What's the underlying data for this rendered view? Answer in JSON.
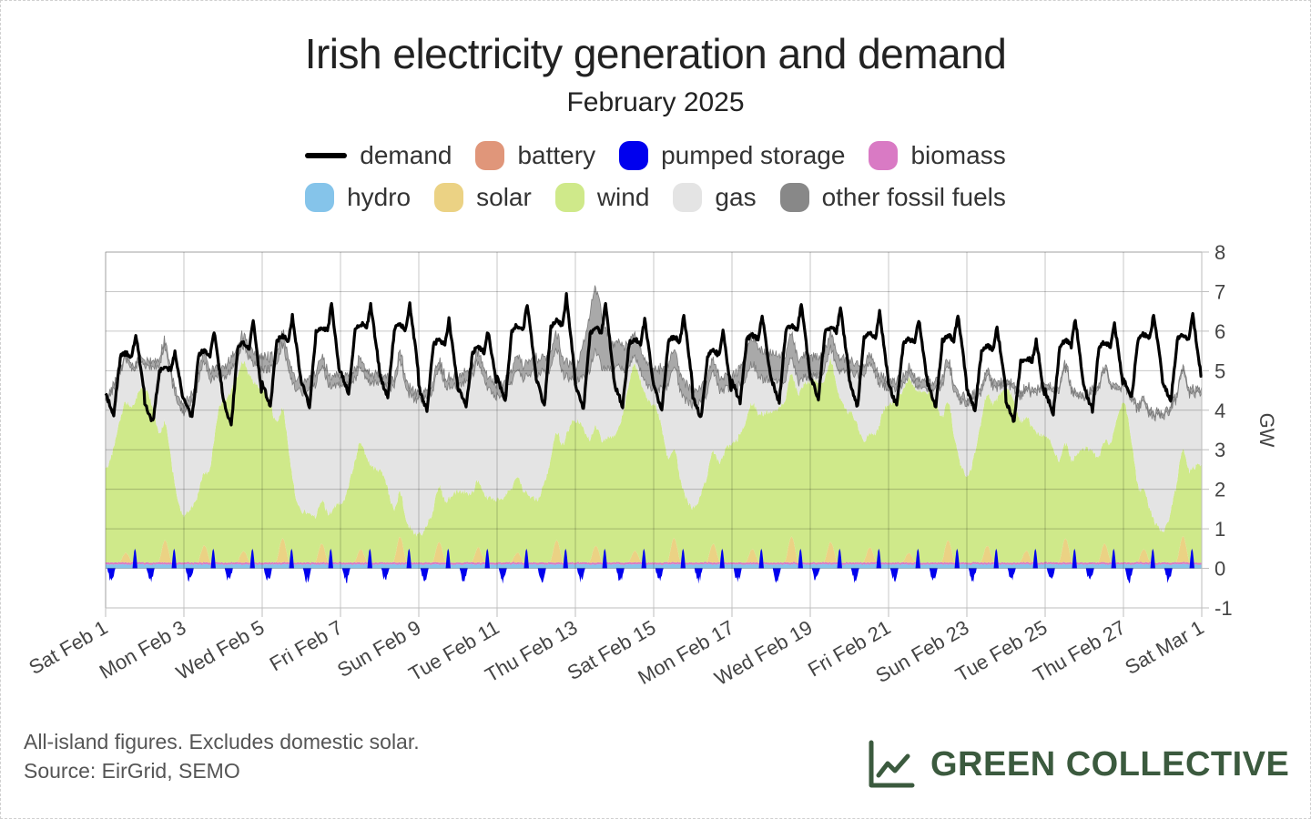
{
  "header": {
    "title": "Irish electricity generation and demand",
    "subtitle": "February 2025"
  },
  "legend": [
    {
      "label": "demand",
      "color": "#000000",
      "kind": "line"
    },
    {
      "label": "battery",
      "color": "#e0967a",
      "kind": "area"
    },
    {
      "label": "pumped storage",
      "color": "#0000ee",
      "kind": "area"
    },
    {
      "label": "biomass",
      "color": "#d97ac4",
      "kind": "area"
    },
    {
      "label": "hydro",
      "color": "#85c4ea",
      "kind": "area"
    },
    {
      "label": "solar",
      "color": "#ebd284",
      "kind": "area"
    },
    {
      "label": "wind",
      "color": "#cfe98a",
      "kind": "area"
    },
    {
      "label": "gas",
      "color": "#e4e4e4",
      "kind": "area"
    },
    {
      "label": "other fossil fuels",
      "color": "#888888",
      "kind": "area"
    }
  ],
  "chart_data": {
    "type": "area",
    "title": "Irish electricity generation and demand",
    "subtitle": "February 2025",
    "ylabel": "GW",
    "ylim": [
      -1,
      8
    ],
    "y_ticks": [
      "-1",
      "0",
      "1",
      "2",
      "3",
      "4",
      "5",
      "6",
      "7",
      "8"
    ],
    "x_ticks": [
      "Sat Feb 1",
      "Mon Feb 3",
      "Wed Feb 5",
      "Fri Feb 7",
      "Sun Feb 9",
      "Tue Feb 11",
      "Thu Feb 13",
      "Sat Feb 15",
      "Mon Feb 17",
      "Wed Feb 19",
      "Fri Feb 21",
      "Sun Feb 23",
      "Tue Feb 25",
      "Thu Feb 27",
      "Sat Mar 1"
    ],
    "x_range": [
      "2025-02-01",
      "2025-03-01"
    ],
    "grid": true,
    "legend_position": "top",
    "series": [
      {
        "name": "wind",
        "color": "#cfe98a",
        "x": [
          "2025-02-01",
          "2025-02-01 12:00",
          "2025-02-02",
          "2025-02-02 12:00",
          "2025-02-03",
          "2025-02-03 12:00",
          "2025-02-04",
          "2025-02-04 12:00",
          "2025-02-05",
          "2025-02-05 12:00",
          "2025-02-06",
          "2025-02-06 12:00",
          "2025-02-07",
          "2025-02-07 12:00",
          "2025-02-08",
          "2025-02-08 12:00",
          "2025-02-09",
          "2025-02-09 12:00",
          "2025-02-10",
          "2025-02-10 12:00",
          "2025-02-11",
          "2025-02-11 12:00",
          "2025-02-12",
          "2025-02-12 12:00",
          "2025-02-13",
          "2025-02-13 12:00",
          "2025-02-14",
          "2025-02-14 12:00",
          "2025-02-15",
          "2025-02-15 12:00",
          "2025-02-16",
          "2025-02-16 12:00",
          "2025-02-17",
          "2025-02-17 12:00",
          "2025-02-18",
          "2025-02-18 12:00",
          "2025-02-19",
          "2025-02-19 12:00",
          "2025-02-20",
          "2025-02-20 12:00",
          "2025-02-21",
          "2025-02-21 12:00",
          "2025-02-22",
          "2025-02-22 12:00",
          "2025-02-23",
          "2025-02-23 12:00",
          "2025-02-24",
          "2025-02-24 12:00",
          "2025-02-25",
          "2025-02-25 12:00",
          "2025-02-26",
          "2025-02-26 12:00",
          "2025-02-27",
          "2025-02-27 12:00",
          "2025-02-28",
          "2025-02-28 12:00",
          "2025-03-01"
        ],
        "values": [
          2.4,
          3.8,
          4.4,
          3.0,
          1.2,
          1.8,
          4.1,
          4.8,
          4.4,
          3.3,
          1.3,
          1.1,
          1.5,
          2.7,
          2.3,
          1.1,
          0.7,
          1.4,
          1.8,
          1.7,
          1.6,
          1.9,
          1.6,
          2.7,
          3.6,
          3.0,
          3.2,
          4.7,
          4.0,
          2.3,
          1.4,
          2.3,
          3.0,
          3.7,
          3.8,
          4.1,
          4.6,
          4.6,
          3.8,
          2.9,
          4.0,
          4.4,
          4.3,
          3.5,
          2.2,
          3.8,
          4.4,
          3.4,
          3.2,
          2.4,
          2.9,
          2.6,
          4.0,
          1.5,
          0.8,
          2.2,
          2.5
        ]
      },
      {
        "name": "gas",
        "color": "#e4e4e4",
        "x": [
          "2025-02-01",
          "2025-02-01 12:00",
          "2025-02-02",
          "2025-02-02 12:00",
          "2025-02-03",
          "2025-02-03 12:00",
          "2025-02-04",
          "2025-02-04 12:00",
          "2025-02-05",
          "2025-02-05 12:00",
          "2025-02-06",
          "2025-02-06 12:00",
          "2025-02-07",
          "2025-02-07 12:00",
          "2025-02-08",
          "2025-02-08 12:00",
          "2025-02-09",
          "2025-02-09 12:00",
          "2025-02-10",
          "2025-02-10 12:00",
          "2025-02-11",
          "2025-02-11 12:00",
          "2025-02-12",
          "2025-02-12 12:00",
          "2025-02-13",
          "2025-02-13 12:00",
          "2025-02-14",
          "2025-02-14 12:00",
          "2025-02-15",
          "2025-02-15 12:00",
          "2025-02-16",
          "2025-02-16 12:00",
          "2025-02-17",
          "2025-02-17 12:00",
          "2025-02-18",
          "2025-02-18 12:00",
          "2025-02-19",
          "2025-02-19 12:00",
          "2025-02-20",
          "2025-02-20 12:00",
          "2025-02-21",
          "2025-02-21 12:00",
          "2025-02-22",
          "2025-02-22 12:00",
          "2025-02-23",
          "2025-02-23 12:00",
          "2025-02-24",
          "2025-02-24 12:00",
          "2025-02-25",
          "2025-02-25 12:00",
          "2025-02-26",
          "2025-02-26 12:00",
          "2025-02-27",
          "2025-02-27 12:00",
          "2025-02-28",
          "2025-02-28 12:00",
          "2025-03-01"
        ],
        "values": [
          1.7,
          1.1,
          0.6,
          1.9,
          2.6,
          2.8,
          0.6,
          0.4,
          0.5,
          1.6,
          3.0,
          3.4,
          3.0,
          1.9,
          2.2,
          3.3,
          3.4,
          3.0,
          2.7,
          3.0,
          2.6,
          2.7,
          3.2,
          2.1,
          1.0,
          1.9,
          1.7,
          0.2,
          0.4,
          2.1,
          2.6,
          2.0,
          1.4,
          1.0,
          0.8,
          0.4,
          0.1,
          0.3,
          1.0,
          1.8,
          0.4,
          0.1,
          0.1,
          0.9,
          1.8,
          0.5,
          0.1,
          0.7,
          1.2,
          1.9,
          1.3,
          1.8,
          0.4,
          2.2,
          2.9,
          2.0,
          1.8
        ]
      },
      {
        "name": "other fossil fuels",
        "color": "#888888",
        "x": [
          "2025-02-01",
          "2025-02-05",
          "2025-02-09",
          "2025-02-13",
          "2025-02-13 12:00",
          "2025-02-14",
          "2025-02-17",
          "2025-02-17 12:00",
          "2025-02-21",
          "2025-02-25",
          "2025-03-01"
        ],
        "values": [
          0.1,
          0.3,
          0.2,
          0.4,
          1.6,
          0.6,
          0.3,
          0.7,
          0.2,
          0.1,
          0.1
        ]
      },
      {
        "name": "solar",
        "color": "#ebd284",
        "peak_gw": 0.7
      },
      {
        "name": "hydro",
        "color": "#85c4ea",
        "level_gw": 0.1
      },
      {
        "name": "biomass",
        "color": "#d97ac4",
        "level_gw": 0.05
      },
      {
        "name": "battery",
        "color": "#e0967a",
        "range_gw": [
          -0.1,
          0.3
        ]
      },
      {
        "name": "pumped storage",
        "color": "#0000ee",
        "range_gw": [
          -0.4,
          0.5
        ]
      },
      {
        "name": "demand",
        "color": "#000000",
        "daily_min_gw": [
          3.9,
          3.7,
          3.8,
          3.6,
          4.1,
          4.1,
          4.4,
          4.3,
          4.0,
          4.1,
          4.2,
          4.1,
          4.0,
          4.1,
          4.0,
          3.8,
          4.2,
          4.2,
          4.3,
          4.1,
          4.1,
          4.1,
          4.0,
          3.7,
          3.9,
          4.0,
          4.3,
          4.2,
          4.5
        ],
        "daily_max_gw": [
          5.9,
          5.5,
          6.0,
          6.3,
          6.4,
          6.7,
          6.7,
          6.7,
          6.3,
          6.0,
          6.7,
          6.9,
          6.7,
          6.3,
          6.4,
          6.0,
          6.4,
          6.7,
          6.6,
          6.5,
          6.3,
          6.4,
          6.1,
          5.8,
          6.3,
          6.2,
          6.4,
          6.4,
          6.2
        ]
      }
    ]
  },
  "footer": {
    "note": "All-island figures. Excludes domestic solar.",
    "source": "Source: EirGrid, SEMO",
    "brand": "GREEN COLLECTIVE"
  }
}
